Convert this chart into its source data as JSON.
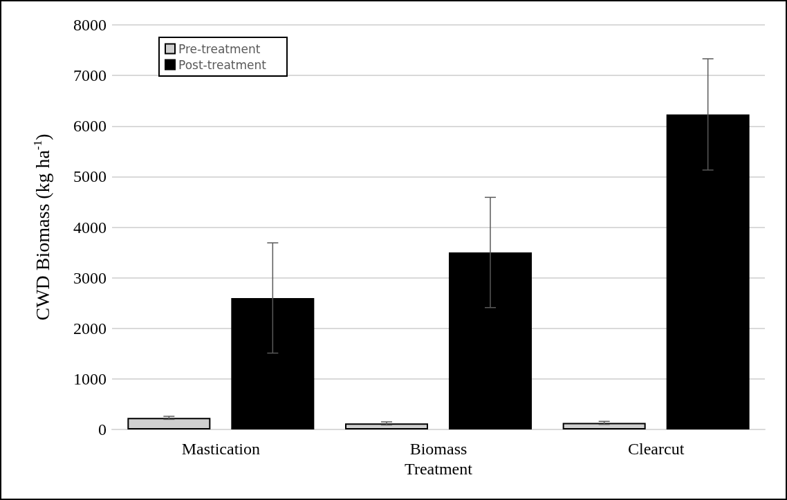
{
  "chart_data": {
    "type": "bar",
    "xlabel": "Treatment",
    "ylabel": "CWD Biomass (kg ha$^{-1}$)",
    "categories": [
      "Mastication",
      "Biomass",
      "Clearcut"
    ],
    "series": [
      {
        "name": "Pre-treatment",
        "color": "#d0d0d0",
        "values": [
          230,
          120,
          130
        ],
        "errors": [
          30,
          30,
          30
        ]
      },
      {
        "name": "Post-treatment",
        "color": "#000000",
        "values": [
          2600,
          3500,
          6230
        ],
        "errors": [
          1090,
          1090,
          1100
        ]
      }
    ],
    "ylim": [
      0,
      8000
    ],
    "yticks": [
      0,
      1000,
      2000,
      3000,
      4000,
      5000,
      6000,
      7000,
      8000
    ],
    "grid": "y",
    "legend": "top left"
  }
}
